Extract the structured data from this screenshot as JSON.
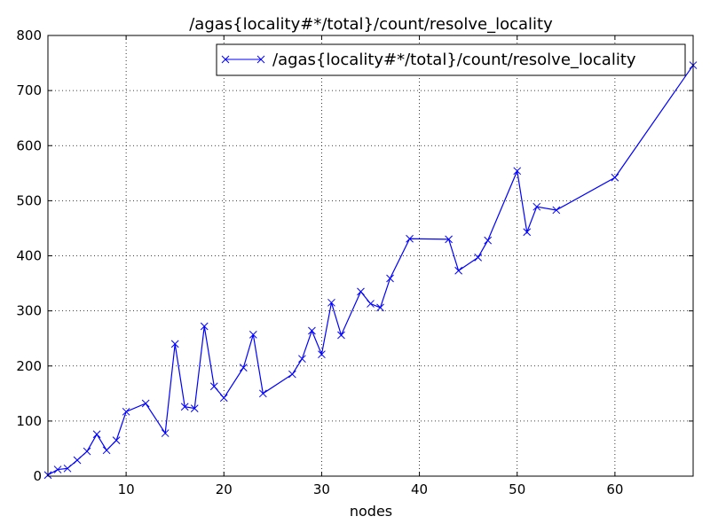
{
  "chart_data": {
    "type": "line",
    "title": "/agas{locality#*/total}/count/resolve_locality",
    "xlabel": "nodes",
    "ylabel": "",
    "xlim": [
      2,
      68
    ],
    "ylim": [
      0,
      800
    ],
    "x_ticks": [
      10,
      20,
      30,
      40,
      50,
      60
    ],
    "y_ticks": [
      0,
      100,
      200,
      300,
      400,
      500,
      600,
      700,
      800
    ],
    "grid": true,
    "legend_position": "top-right",
    "series": [
      {
        "name": "/agas{locality#*/total}/count/resolve_locality",
        "color": "#0000ff",
        "marker": "x",
        "points": [
          [
            2,
            2
          ],
          [
            3,
            12
          ],
          [
            4,
            14
          ],
          [
            5,
            29
          ],
          [
            6,
            45
          ],
          [
            7,
            76
          ],
          [
            8,
            47
          ],
          [
            9,
            65
          ],
          [
            10,
            117
          ],
          [
            12,
            132
          ],
          [
            14,
            78
          ],
          [
            15,
            240
          ],
          [
            16,
            126
          ],
          [
            17,
            123
          ],
          [
            18,
            272
          ],
          [
            19,
            163
          ],
          [
            20,
            142
          ],
          [
            22,
            197
          ],
          [
            23,
            257
          ],
          [
            24,
            150
          ],
          [
            27,
            185
          ],
          [
            28,
            213
          ],
          [
            29,
            264
          ],
          [
            30,
            221
          ],
          [
            31,
            315
          ],
          [
            32,
            256
          ],
          [
            34,
            335
          ],
          [
            35,
            313
          ],
          [
            36,
            306
          ],
          [
            37,
            359
          ],
          [
            39,
            431
          ],
          [
            43,
            430
          ],
          [
            44,
            373
          ],
          [
            46,
            397
          ],
          [
            47,
            428
          ],
          [
            50,
            554
          ],
          [
            51,
            443
          ],
          [
            52,
            489
          ],
          [
            54,
            483
          ],
          [
            60,
            542
          ],
          [
            68,
            746
          ]
        ]
      }
    ]
  }
}
